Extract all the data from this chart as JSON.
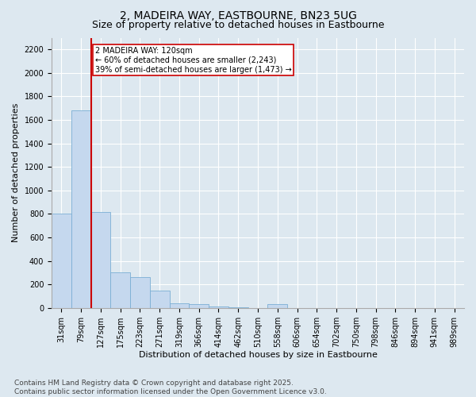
{
  "title": "2, MADEIRA WAY, EASTBOURNE, BN23 5UG",
  "subtitle": "Size of property relative to detached houses in Eastbourne",
  "xlabel": "Distribution of detached houses by size in Eastbourne",
  "ylabel": "Number of detached properties",
  "categories": [
    "31sqm",
    "79sqm",
    "127sqm",
    "175sqm",
    "223sqm",
    "271sqm",
    "319sqm",
    "366sqm",
    "414sqm",
    "462sqm",
    "510sqm",
    "558sqm",
    "606sqm",
    "654sqm",
    "702sqm",
    "750sqm",
    "798sqm",
    "846sqm",
    "894sqm",
    "941sqm",
    "989sqm"
  ],
  "values": [
    800,
    1680,
    820,
    300,
    260,
    150,
    40,
    30,
    15,
    5,
    0,
    30,
    0,
    0,
    0,
    0,
    0,
    0,
    0,
    0,
    0
  ],
  "bar_color": "#c5d8ee",
  "bar_edge_color": "#7bafd4",
  "vline_x_index": 2,
  "vline_color": "#cc0000",
  "annotation_text": "2 MADEIRA WAY: 120sqm\n← 60% of detached houses are smaller (2,243)\n39% of semi-detached houses are larger (1,473) →",
  "annotation_box_color": "#cc0000",
  "ylim": [
    0,
    2300
  ],
  "yticks": [
    0,
    200,
    400,
    600,
    800,
    1000,
    1200,
    1400,
    1600,
    1800,
    2000,
    2200
  ],
  "footnote": "Contains HM Land Registry data © Crown copyright and database right 2025.\nContains public sector information licensed under the Open Government Licence v3.0.",
  "bg_color": "#dde8f0",
  "plot_bg_color": "#dde8f0",
  "title_fontsize": 10,
  "subtitle_fontsize": 9,
  "label_fontsize": 8,
  "tick_fontsize": 7,
  "footnote_fontsize": 6.5
}
